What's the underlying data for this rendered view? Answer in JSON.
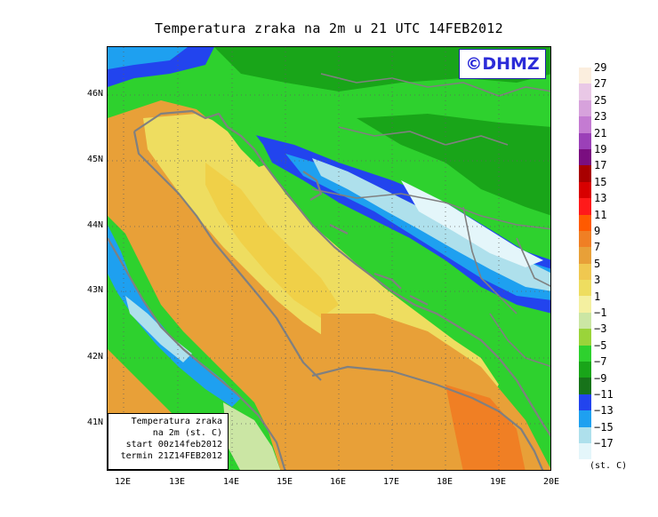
{
  "title": "Temperatura zraka na 2m u 21 UTC 14FEB2012",
  "logo": "©DHMZ",
  "info": {
    "line1": "Temperatura zraka",
    "line2": "na 2m (st. C)",
    "line3": "start 00z14feb2012",
    "line4": "termin 21Z14FEB2012"
  },
  "lat_ticks": [
    "46N",
    "45N",
    "44N",
    "43N",
    "42N",
    "41N"
  ],
  "lon_ticks": [
    "12E",
    "13E",
    "14E",
    "15E",
    "16E",
    "17E",
    "18E",
    "19E",
    "20E"
  ],
  "colorbar": {
    "labels": [
      "29",
      "27",
      "25",
      "23",
      "21",
      "19",
      "17",
      "15",
      "13",
      "11",
      "9",
      "7",
      "5",
      "3",
      "1",
      "−1",
      "−3",
      "−5",
      "−7",
      "−9",
      "−11",
      "−13",
      "−15",
      "−17"
    ],
    "colors": [
      "#fbeede",
      "#e9c8e6",
      "#d7a2dc",
      "#c47bd2",
      "#9b40b8",
      "#7a0e80",
      "#a80000",
      "#d80000",
      "#ff1a1a",
      "#ff5a00",
      "#f07f24",
      "#e8a038",
      "#f0c850",
      "#eedd60",
      "#f4f0a0",
      "#cbe6a4",
      "#9ad43a",
      "#2ed12e",
      "#19a519",
      "#17731a",
      "#2244ee",
      "#1ea0f0",
      "#aee0ec",
      "#e4f6fa"
    ],
    "unit": "(st. C)"
  }
}
